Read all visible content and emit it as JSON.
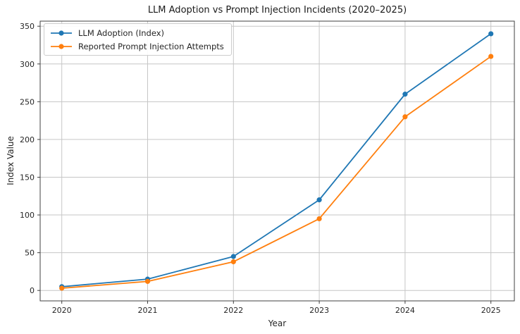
{
  "chart_data": {
    "type": "line",
    "title": "LLM Adoption vs Prompt Injection Incidents (2020–2025)",
    "xlabel": "Year",
    "ylabel": "Index Value",
    "x": [
      2020,
      2021,
      2022,
      2023,
      2024,
      2025
    ],
    "series": [
      {
        "name": "LLM Adoption (Index)",
        "color": "#1f77b4",
        "values": [
          5,
          15,
          45,
          120,
          260,
          340
        ]
      },
      {
        "name": "Reported Prompt Injection Attempts",
        "color": "#ff7f0e",
        "values": [
          3,
          12,
          38,
          95,
          230,
          310
        ]
      }
    ],
    "yticks": [
      0,
      50,
      100,
      150,
      200,
      250,
      300,
      350
    ],
    "ylim": [
      0,
      350
    ],
    "grid": true,
    "legend_position": "upper-left",
    "colors": {
      "grid": "#c6c6c6",
      "spine": "#404040",
      "tick_text": "#262626",
      "background": "#ffffff"
    }
  }
}
